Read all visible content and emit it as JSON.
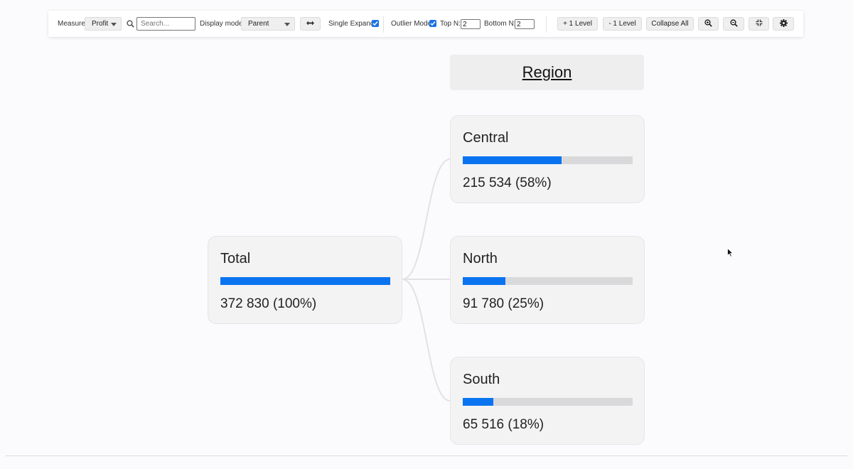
{
  "toolbar": {
    "measure_label": "Measure",
    "measure_value": "Profit",
    "search_placeholder": "Search...",
    "display_mode_label": "Display mode",
    "display_mode_value": "Parent",
    "single_expand_label": "Single Expand",
    "single_expand_checked": true,
    "outlier_mode_label": "Outlier Mode",
    "outlier_mode_checked": true,
    "top_n_label": "Top N:",
    "top_n_value": "2",
    "bottom_n_label": "Bottom N:",
    "bottom_n_value": "2",
    "plus_level_label": "+ 1 Level",
    "minus_level_label": "- 1 Level",
    "collapse_all_label": "Collapse All",
    "icons": [
      "swap-arrows-icon",
      "zoom-in-icon",
      "zoom-out-icon",
      "fit-screen-icon",
      "gear-icon"
    ]
  },
  "tree": {
    "level_header": "Region",
    "accent_color": "#0a74f0",
    "root": {
      "name": "Total",
      "value": "372 830 (100%)",
      "share": 1.0
    },
    "children": [
      {
        "name": "Central",
        "value": "215 534 (58%)",
        "share": 0.58
      },
      {
        "name": "North",
        "value": "91 780 (25%)",
        "share": 0.25
      },
      {
        "name": "South",
        "value": "65 516 (18%)",
        "share": 0.18
      }
    ]
  }
}
